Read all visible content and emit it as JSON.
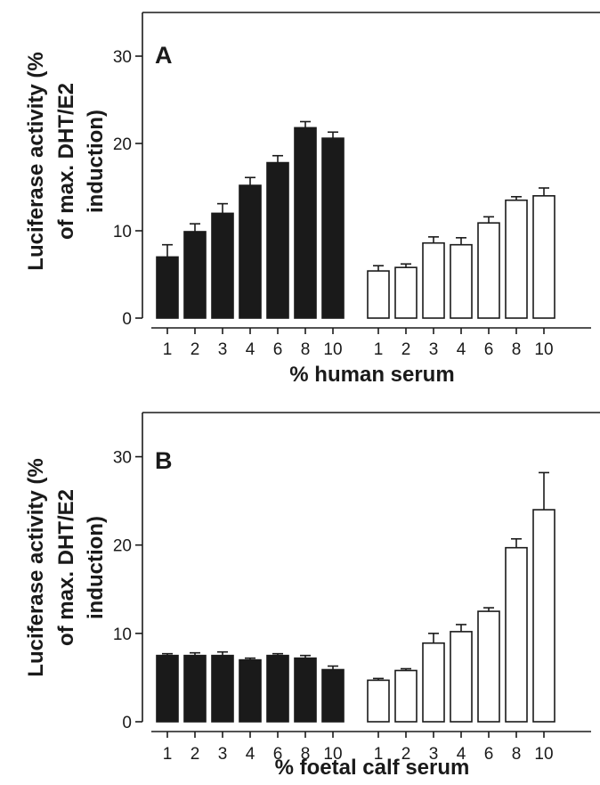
{
  "colors": {
    "filled": "#1a1a1a",
    "open": "#ffffff",
    "stroke": "#1a1a1a"
  },
  "chart_data": [
    {
      "type": "bar",
      "panel": "A",
      "xlabel": "% human serum",
      "ylabel": [
        "Luciferase activity (%",
        "of max. DHT/E2",
        "induction)"
      ],
      "ylim": [
        0,
        35
      ],
      "yticks": [
        0,
        10,
        20,
        30
      ],
      "categories": [
        "1",
        "2",
        "3",
        "4",
        "6",
        "8",
        "10"
      ],
      "series": [
        {
          "fill": "filled",
          "values": [
            7.0,
            9.9,
            12.0,
            15.2,
            17.8,
            21.8,
            20.6
          ],
          "errors": [
            1.4,
            0.9,
            1.1,
            0.9,
            0.8,
            0.7,
            0.7
          ]
        },
        {
          "fill": "open",
          "values": [
            5.4,
            5.8,
            8.6,
            8.4,
            10.9,
            13.5,
            14.0
          ],
          "errors": [
            0.6,
            0.4,
            0.7,
            0.8,
            0.7,
            0.4,
            0.9
          ]
        }
      ],
      "grid": false
    },
    {
      "type": "bar",
      "panel": "B",
      "xlabel": "% foetal calf serum",
      "ylabel": [
        "Luciferase activity (%",
        "of max. DHT/E2",
        "induction)"
      ],
      "ylim": [
        0,
        35
      ],
      "yticks": [
        0,
        10,
        20,
        30
      ],
      "categories": [
        "1",
        "2",
        "3",
        "4",
        "6",
        "8",
        "10"
      ],
      "series": [
        {
          "fill": "filled",
          "values": [
            7.5,
            7.5,
            7.5,
            7.0,
            7.5,
            7.2,
            5.9
          ],
          "errors": [
            0.2,
            0.3,
            0.4,
            0.2,
            0.2,
            0.3,
            0.4
          ]
        },
        {
          "fill": "open",
          "values": [
            4.7,
            5.8,
            8.9,
            10.2,
            12.5,
            19.7,
            24.0
          ],
          "errors": [
            0.2,
            0.2,
            1.1,
            0.8,
            0.4,
            1.0,
            4.2
          ]
        }
      ],
      "grid": false
    }
  ]
}
